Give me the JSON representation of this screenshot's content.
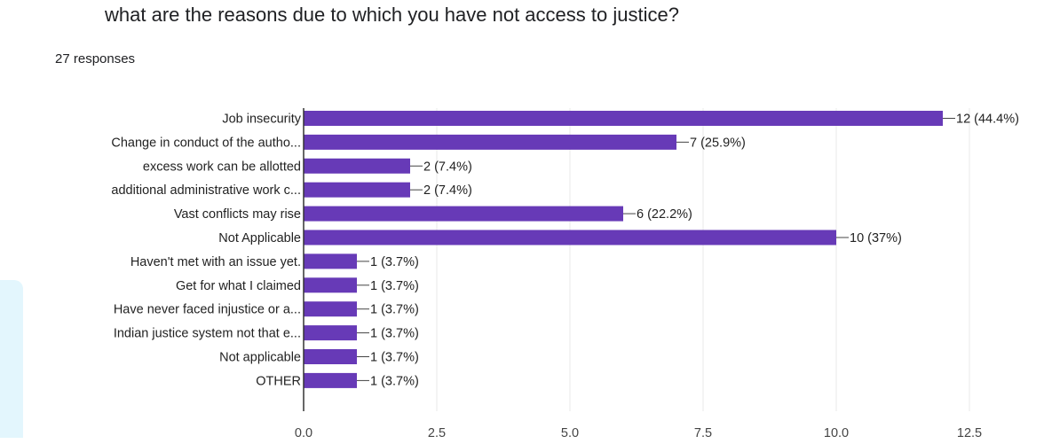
{
  "question": "what are the reasons due to which you have not access to justice?",
  "responses": "27 responses",
  "colors": {
    "bar": "#673ab7",
    "grid": "#e8e8e8",
    "axis": "#333333",
    "accent": "#e3f6fd"
  },
  "chart_data": {
    "type": "bar",
    "orientation": "horizontal",
    "title": "what are the reasons due to which you have not access to justice?",
    "categories": [
      "Job insecurity",
      "Change in conduct of the autho...",
      "excess work can be allotted",
      "additional administrative work c...",
      "Vast conflicts may rise",
      "Not Applicable",
      "Haven't met with an issue yet.",
      "Get for what I claimed",
      "Have never faced injustice or a...",
      "Indian justice system not that e...",
      "Not applicable",
      "OTHER"
    ],
    "values": [
      12,
      7,
      2,
      2,
      6,
      10,
      1,
      1,
      1,
      1,
      1,
      1
    ],
    "value_labels": [
      "12 (44.4%)",
      "7 (25.9%)",
      "2 (7.4%)",
      "2 (7.4%)",
      "6 (22.2%)",
      "10 (37%)",
      "1 (3.7%)",
      "1 (3.7%)",
      "1 (3.7%)",
      "1 (3.7%)",
      "1 (3.7%)",
      "1 (3.7%)"
    ],
    "xlim": [
      0,
      12.5
    ],
    "xticks": [
      0,
      2.5,
      5,
      7.5,
      10,
      12.5
    ],
    "xtick_labels": [
      "0.0",
      "2.5",
      "5.0",
      "7.5",
      "10.0",
      "12.5"
    ],
    "grid": true,
    "legend": "none"
  }
}
